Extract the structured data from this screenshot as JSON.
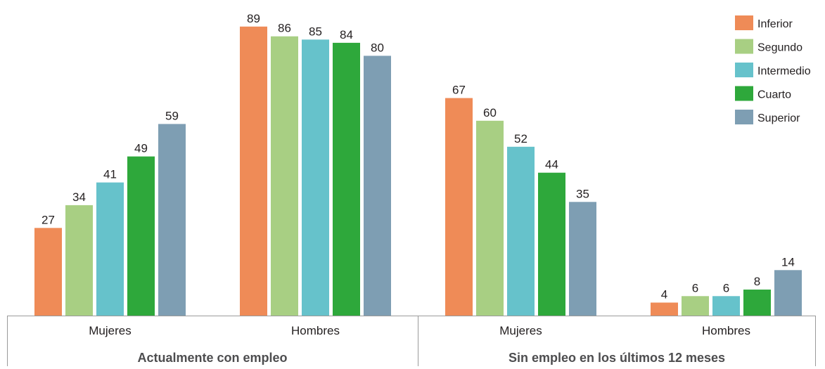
{
  "chart_data": {
    "type": "bar",
    "ylim": [
      0,
      100
    ],
    "grid": false,
    "legend_position": "top-right",
    "series": [
      {
        "name": "Inferior",
        "color": "#ef8b57",
        "values": [
          27,
          89,
          67,
          4
        ]
      },
      {
        "name": "Segundo",
        "color": "#a8cf83",
        "values": [
          34,
          86,
          60,
          6
        ]
      },
      {
        "name": "Intermedio",
        "color": "#66c2cb",
        "values": [
          41,
          85,
          52,
          6
        ]
      },
      {
        "name": "Cuarto",
        "color": "#2ea83b",
        "values": [
          49,
          84,
          44,
          8
        ]
      },
      {
        "name": "Superior",
        "color": "#7e9eb3",
        "values": [
          59,
          80,
          35,
          14
        ]
      }
    ],
    "categories": [
      "Mujeres",
      "Hombres",
      "Mujeres",
      "Hombres"
    ],
    "groups": [
      {
        "label": "Actualmente con empleo",
        "categories": [
          0,
          1
        ]
      },
      {
        "label": "Sin empleo en los últimos 12 meses",
        "categories": [
          2,
          3
        ]
      }
    ]
  }
}
